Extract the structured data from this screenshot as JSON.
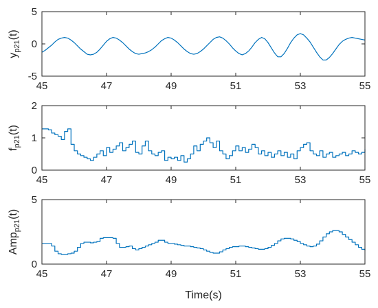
{
  "colors": {
    "series": "#0072BD",
    "axis": "#262626"
  },
  "chart_data": [
    {
      "type": "line",
      "ylabel": {
        "main": "y",
        "sub": "p21",
        "suffix": "(t)"
      },
      "xlabel": "",
      "xlim": [
        45,
        55
      ],
      "ylim": [
        -5,
        5
      ],
      "xticks": [
        "45",
        "47",
        "49",
        "51",
        "53",
        "55"
      ],
      "yticks": [
        "-5",
        "0",
        "5"
      ],
      "series": [
        {
          "x": [
            45.0,
            45.1,
            45.2,
            45.3,
            45.4,
            45.5,
            45.6,
            45.7,
            45.8,
            45.9,
            46.0,
            46.1,
            46.2,
            46.3,
            46.4,
            46.5,
            46.6,
            46.7,
            46.8,
            46.9,
            47.0,
            47.1,
            47.2,
            47.3,
            47.4,
            47.5,
            47.6,
            47.7,
            47.8,
            47.9,
            48.0,
            48.1,
            48.2,
            48.3,
            48.4,
            48.5,
            48.6,
            48.7,
            48.8,
            48.9,
            49.0,
            49.1,
            49.2,
            49.3,
            49.4,
            49.5,
            49.6,
            49.7,
            49.8,
            49.9,
            50.0,
            50.1,
            50.2,
            50.3,
            50.4,
            50.5,
            50.6,
            50.7,
            50.8,
            50.9,
            51.0,
            51.1,
            51.2,
            51.3,
            51.4,
            51.5,
            51.6,
            51.7,
            51.8,
            51.9,
            52.0,
            52.1,
            52.2,
            52.3,
            52.4,
            52.5,
            52.6,
            52.7,
            52.8,
            52.9,
            53.0,
            53.1,
            53.2,
            53.3,
            53.4,
            53.5,
            53.6,
            53.7,
            53.8,
            53.9,
            54.0,
            54.1,
            54.2,
            54.3,
            54.4,
            54.5,
            54.6,
            54.7,
            54.8,
            54.9,
            55.0
          ],
          "y": [
            -1.3,
            -1.0,
            -0.6,
            -0.2,
            0.3,
            0.7,
            0.9,
            1.0,
            0.9,
            0.6,
            0.2,
            -0.3,
            -0.8,
            -1.2,
            -1.6,
            -1.7,
            -1.6,
            -1.3,
            -0.8,
            -0.2,
            0.4,
            0.8,
            1.0,
            0.9,
            0.6,
            0.2,
            -0.3,
            -0.8,
            -1.2,
            -1.5,
            -1.6,
            -1.5,
            -1.4,
            -1.2,
            -0.9,
            -0.5,
            0.0,
            0.5,
            0.8,
            1.0,
            0.9,
            0.6,
            0.2,
            -0.3,
            -0.8,
            -1.2,
            -1.5,
            -1.6,
            -1.5,
            -1.2,
            -0.8,
            -0.3,
            0.2,
            0.7,
            1.0,
            1.1,
            0.9,
            0.5,
            0.0,
            -0.6,
            -1.1,
            -1.5,
            -1.7,
            -1.5,
            -1.1,
            -0.5,
            0.2,
            0.7,
            1.0,
            0.8,
            0.2,
            -0.6,
            -1.4,
            -2.0,
            -2.0,
            -1.5,
            -0.7,
            0.2,
            0.9,
            1.4,
            1.6,
            1.4,
            0.9,
            0.3,
            -0.5,
            -1.3,
            -2.0,
            -2.5,
            -2.5,
            -2.1,
            -1.5,
            -0.8,
            -0.1,
            0.4,
            0.7,
            0.9,
            1.0,
            0.9,
            0.8,
            0.7,
            0.6
          ]
        }
      ]
    },
    {
      "type": "line",
      "ylabel": {
        "main": "f",
        "sub": "p21",
        "suffix": "(t)"
      },
      "xlabel": "",
      "xlim": [
        45,
        55
      ],
      "ylim": [
        0,
        2
      ],
      "xticks": [
        "45",
        "47",
        "49",
        "51",
        "53",
        "55"
      ],
      "yticks": [
        "0",
        "1",
        "2"
      ],
      "series": [
        {
          "x": [
            45.0,
            45.1,
            45.2,
            45.3,
            45.4,
            45.5,
            45.6,
            45.7,
            45.8,
            45.9,
            46.0,
            46.1,
            46.2,
            46.3,
            46.4,
            46.5,
            46.6,
            46.7,
            46.8,
            46.9,
            47.0,
            47.1,
            47.2,
            47.3,
            47.4,
            47.5,
            47.6,
            47.7,
            47.8,
            47.9,
            48.0,
            48.1,
            48.2,
            48.3,
            48.4,
            48.5,
            48.6,
            48.7,
            48.8,
            48.9,
            49.0,
            49.1,
            49.2,
            49.3,
            49.4,
            49.5,
            49.6,
            49.7,
            49.8,
            49.9,
            50.0,
            50.1,
            50.2,
            50.3,
            50.4,
            50.5,
            50.6,
            50.7,
            50.8,
            50.9,
            51.0,
            51.1,
            51.2,
            51.3,
            51.4,
            51.5,
            51.6,
            51.7,
            51.8,
            51.9,
            52.0,
            52.1,
            52.2,
            52.3,
            52.4,
            52.5,
            52.6,
            52.7,
            52.8,
            52.9,
            53.0,
            53.1,
            53.2,
            53.3,
            53.4,
            53.5,
            53.6,
            53.7,
            53.8,
            53.9,
            54.0,
            54.1,
            54.2,
            54.3,
            54.4,
            54.5,
            54.6,
            54.7,
            54.8,
            54.9,
            55.0
          ],
          "y": [
            1.28,
            1.28,
            1.25,
            1.15,
            1.1,
            1.05,
            0.95,
            1.2,
            1.28,
            0.8,
            0.6,
            0.5,
            0.45,
            0.4,
            0.35,
            0.3,
            0.4,
            0.5,
            0.6,
            0.45,
            0.7,
            0.55,
            0.65,
            0.75,
            0.85,
            0.6,
            0.7,
            0.8,
            0.9,
            0.55,
            0.5,
            0.75,
            0.9,
            0.6,
            0.5,
            0.45,
            0.55,
            0.6,
            0.3,
            0.4,
            0.35,
            0.4,
            0.3,
            0.45,
            0.25,
            0.35,
            0.5,
            0.75,
            0.6,
            0.8,
            0.9,
            1.0,
            0.85,
            0.7,
            0.9,
            0.6,
            0.5,
            0.35,
            0.45,
            0.6,
            0.75,
            0.6,
            0.7,
            0.55,
            0.65,
            0.8,
            0.7,
            0.5,
            0.6,
            0.45,
            0.55,
            0.4,
            0.5,
            0.6,
            0.45,
            0.55,
            0.4,
            0.5,
            0.35,
            0.6,
            0.7,
            0.8,
            0.85,
            0.6,
            0.5,
            0.45,
            0.6,
            0.4,
            0.5,
            0.55,
            0.4,
            0.45,
            0.5,
            0.55,
            0.45,
            0.5,
            0.6,
            0.55,
            0.5,
            0.55,
            0.65
          ]
        }
      ]
    },
    {
      "type": "line",
      "ylabel": {
        "main": "Amp",
        "sub": "p21",
        "suffix": "(t)"
      },
      "xlabel": "Time(s)",
      "xlim": [
        45,
        55
      ],
      "ylim": [
        0,
        5
      ],
      "xticks": [
        "45",
        "47",
        "49",
        "51",
        "53",
        "55"
      ],
      "yticks": [
        "0",
        "5"
      ],
      "series": [
        {
          "x": [
            45.0,
            45.1,
            45.2,
            45.3,
            45.4,
            45.5,
            45.6,
            45.7,
            45.8,
            45.9,
            46.0,
            46.1,
            46.2,
            46.3,
            46.4,
            46.5,
            46.6,
            46.7,
            46.8,
            46.9,
            47.0,
            47.1,
            47.2,
            47.3,
            47.4,
            47.5,
            47.6,
            47.7,
            47.8,
            47.9,
            48.0,
            48.1,
            48.2,
            48.3,
            48.4,
            48.5,
            48.6,
            48.7,
            48.8,
            48.9,
            49.0,
            49.1,
            49.2,
            49.3,
            49.4,
            49.5,
            49.6,
            49.7,
            49.8,
            49.9,
            50.0,
            50.1,
            50.2,
            50.3,
            50.4,
            50.5,
            50.6,
            50.7,
            50.8,
            50.9,
            51.0,
            51.1,
            51.2,
            51.3,
            51.4,
            51.5,
            51.6,
            51.7,
            51.8,
            51.9,
            52.0,
            52.1,
            52.2,
            52.3,
            52.4,
            52.5,
            52.6,
            52.7,
            52.8,
            52.9,
            53.0,
            53.1,
            53.2,
            53.3,
            53.4,
            53.5,
            53.6,
            53.7,
            53.8,
            53.9,
            54.0,
            54.1,
            54.2,
            54.3,
            54.4,
            54.5,
            54.6,
            54.7,
            54.8,
            54.9,
            55.0
          ],
          "y": [
            1.6,
            1.6,
            1.6,
            1.4,
            1.0,
            0.8,
            0.75,
            0.75,
            0.8,
            0.85,
            1.0,
            1.3,
            1.6,
            1.7,
            1.7,
            1.65,
            1.7,
            1.75,
            2.0,
            2.05,
            2.05,
            2.05,
            2.0,
            1.6,
            1.3,
            1.3,
            1.35,
            1.4,
            1.2,
            1.1,
            1.2,
            1.3,
            1.4,
            1.5,
            1.6,
            1.7,
            1.85,
            1.85,
            1.7,
            1.6,
            1.6,
            1.55,
            1.5,
            1.45,
            1.4,
            1.4,
            1.35,
            1.3,
            1.25,
            1.2,
            1.1,
            1.0,
            0.9,
            0.85,
            0.85,
            0.95,
            1.1,
            1.2,
            1.3,
            1.35,
            1.35,
            1.4,
            1.4,
            1.35,
            1.3,
            1.25,
            1.2,
            1.15,
            1.15,
            1.2,
            1.3,
            1.45,
            1.6,
            1.8,
            1.95,
            2.0,
            2.0,
            1.95,
            1.85,
            1.75,
            1.6,
            1.5,
            1.4,
            1.35,
            1.4,
            1.55,
            1.8,
            2.1,
            2.35,
            2.5,
            2.6,
            2.6,
            2.5,
            2.3,
            2.1,
            1.9,
            1.7,
            1.5,
            1.3,
            1.15,
            1.05
          ]
        }
      ]
    }
  ]
}
